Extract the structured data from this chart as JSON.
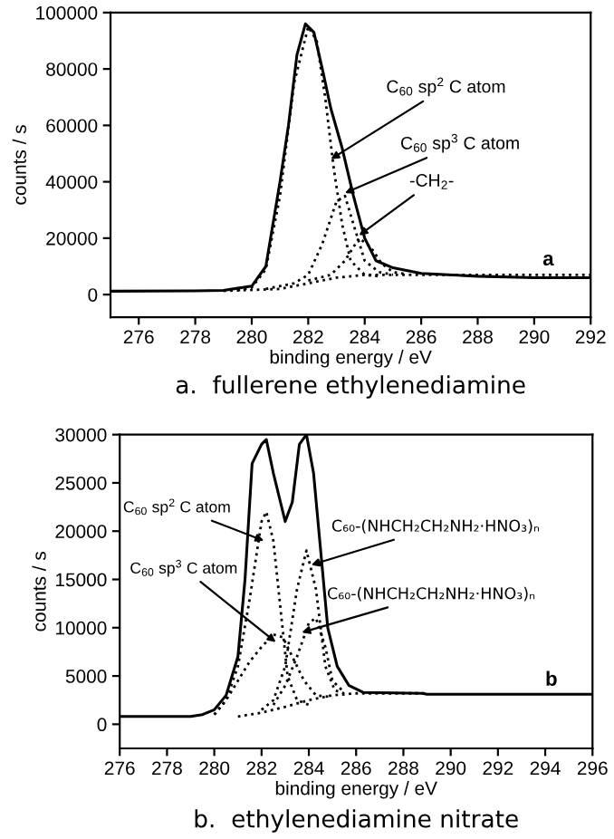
{
  "chart_data": [
    {
      "type": "line",
      "title": "a.  fullerene ethylenediamine",
      "xlabel": "binding energy / eV",
      "ylabel": "counts / s",
      "xlim": [
        275,
        292
      ],
      "ylim": [
        -8000,
        100000
      ],
      "xticks": [
        276,
        278,
        280,
        282,
        284,
        286,
        288,
        290,
        292
      ],
      "yticks": [
        0,
        20000,
        40000,
        60000,
        80000,
        100000
      ],
      "grid": false,
      "series": [
        {
          "color": "#000000",
          "line_style": "solid",
          "x": [
            275,
            278,
            279,
            280,
            280.5,
            281,
            281.3,
            281.6,
            281.9,
            282.2,
            282.5,
            282.8,
            283.2,
            283.6,
            284,
            284.4,
            285,
            286,
            288,
            290,
            292
          ],
          "values": [
            1200,
            1300,
            1500,
            3000,
            10000,
            40000,
            60000,
            85000,
            96000,
            93000,
            80000,
            66000,
            52000,
            35000,
            20000,
            12000,
            9500,
            7500,
            6500,
            6000,
            6000
          ]
        },
        {
          "color": "#000000",
          "line_style": "dotted",
          "x": [
            279.5,
            280,
            280.5,
            281,
            281.5,
            282,
            282.3,
            282.6,
            282.9,
            283.2,
            283.5,
            284,
            284.5
          ],
          "values": [
            1500,
            2500,
            9000,
            35000,
            75000,
            95000,
            90000,
            70000,
            45000,
            25000,
            12000,
            7000,
            6500
          ]
        },
        {
          "color": "#000000",
          "line_style": "dotted",
          "x": [
            280.5,
            281.5,
            282,
            282.5,
            283,
            283.3,
            283.6,
            284,
            284.5,
            285
          ],
          "values": [
            2000,
            4000,
            7000,
            18000,
            33000,
            35000,
            25000,
            12000,
            8000,
            7000
          ]
        },
        {
          "color": "#000000",
          "line_style": "dotted",
          "x": [
            282,
            282.8,
            283.3,
            283.8,
            284.2,
            284.6,
            285,
            285.5
          ],
          "values": [
            5000,
            7000,
            12000,
            20000,
            17000,
            11000,
            8000,
            7200
          ]
        },
        {
          "color": "#000000",
          "line_style": "dotted",
          "x": [
            279,
            281,
            282,
            283,
            284,
            286,
            292
          ],
          "values": [
            1300,
            2000,
            4000,
            6000,
            7000,
            7000,
            7000
          ]
        }
      ],
      "annotations": [
        {
          "text": "C$_{60}$ sp$^{2}$ C atom",
          "x": 282.8,
          "y": 48000
        },
        {
          "text": "C$_{60}$ sp$^{3}$ C atom",
          "x": 283.3,
          "y": 36000
        },
        {
          "text": "-CH$_{2}$-",
          "x": 283.8,
          "y": 21000
        },
        "a"
      ]
    },
    {
      "type": "line",
      "title": "b.  ethylenediamine nitrate",
      "xlabel": "binding energy / eV",
      "ylabel": "counts / s",
      "xlim": [
        276,
        296
      ],
      "ylim": [
        -2500,
        30000
      ],
      "xticks": [
        276,
        278,
        280,
        282,
        284,
        286,
        288,
        290,
        292,
        294,
        296
      ],
      "yticks": [
        0,
        5000,
        10000,
        15000,
        20000,
        25000,
        30000
      ],
      "grid": false,
      "series": [
        {
          "color": "#000000",
          "line_style": "solid",
          "x": [
            276,
            279,
            279.5,
            280,
            280.5,
            281,
            281.3,
            281.6,
            282,
            282.2,
            282.5,
            282.8,
            283,
            283.3,
            283.6,
            283.9,
            284.2,
            284.5,
            284.8,
            285.2,
            285.7,
            286.3,
            288.8,
            289,
            296
          ],
          "values": [
            800,
            800,
            1000,
            1500,
            3000,
            7000,
            15000,
            27000,
            29000,
            29500,
            26000,
            23000,
            21000,
            23000,
            29000,
            30000,
            26000,
            18000,
            10000,
            6000,
            4000,
            3300,
            3200,
            3100,
            3100
          ]
        },
        {
          "color": "#000000",
          "line_style": "dotted",
          "x": [
            280,
            280.5,
            281,
            281.5,
            282,
            282.2,
            282.5,
            282.8,
            283.1,
            283.5,
            284
          ],
          "values": [
            1000,
            2500,
            6000,
            13000,
            21000,
            22000,
            19000,
            12000,
            5000,
            2500,
            2000
          ]
        },
        {
          "color": "#000000",
          "line_style": "dotted",
          "x": [
            280,
            280.5,
            281,
            281.5,
            282,
            282.5,
            282.9,
            283.3,
            283.8,
            284.3,
            285
          ],
          "values": [
            1000,
            2500,
            4500,
            6500,
            8000,
            9300,
            9000,
            7000,
            4500,
            3000,
            2800
          ]
        },
        {
          "color": "#000000",
          "line_style": "dotted",
          "x": [
            282,
            282.5,
            283,
            283.5,
            283.9,
            284.3,
            284.7,
            285.1,
            285.5
          ],
          "values": [
            1500,
            2500,
            6000,
            14000,
            18000,
            14000,
            6000,
            3500,
            3200
          ]
        },
        {
          "color": "#000000",
          "line_style": "dotted",
          "x": [
            282.5,
            283,
            283.5,
            284,
            284.3,
            284.7,
            285,
            285.5
          ],
          "values": [
            2000,
            4000,
            7000,
            10500,
            11000,
            8000,
            4500,
            3300
          ]
        },
        {
          "color": "#000000",
          "line_style": "dotted",
          "x": [
            281,
            282,
            283,
            284,
            285,
            286,
            289
          ],
          "values": [
            800,
            1200,
            1800,
            2500,
            3000,
            3200,
            3200
          ]
        }
      ],
      "annotations": [
        {
          "text": "C$_{60}$ sp$^{2}$ C atom",
          "x": 282.1,
          "y": 19000
        },
        {
          "text": "C$_{60}$ sp$^{3}$ C atom",
          "x": 282.6,
          "y": 8500
        },
        {
          "text": "C₆₀-(NHCH₂CH₂NH₂·HNO₃)ₙ",
          "x": 284.1,
          "y": 16500
        },
        {
          "text": "C₆₀-(NHCH₂CH₂NH₂·HNO₃)ₙ",
          "x": 283.7,
          "y": 9500
        },
        "b"
      ]
    }
  ]
}
